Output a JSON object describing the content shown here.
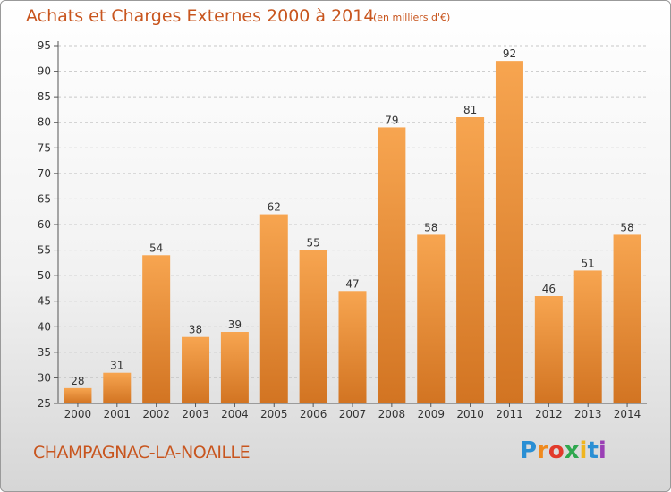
{
  "header": {
    "title": "Achats et Charges Externes 2000 à 2014",
    "unit": "(en milliers d'€)"
  },
  "footer": {
    "commune": "CHAMPAGNAC-LA-NOAILLE",
    "logo": "Proxiti"
  },
  "colors": {
    "bar_light": "#f7a550",
    "bar_dark": "#d27422",
    "title": "#c8551e",
    "grid": "#c8c8c8"
  },
  "chart_data": {
    "type": "bar",
    "categories": [
      "2000",
      "2001",
      "2002",
      "2003",
      "2004",
      "2005",
      "2006",
      "2007",
      "2008",
      "2009",
      "2010",
      "2011",
      "2012",
      "2013",
      "2014"
    ],
    "values": [
      28,
      31,
      54,
      38,
      39,
      62,
      55,
      47,
      79,
      58,
      81,
      92,
      46,
      51,
      58
    ],
    "ylim": [
      25,
      95
    ],
    "yticks": [
      25,
      30,
      35,
      40,
      45,
      50,
      55,
      60,
      65,
      70,
      75,
      80,
      85,
      90,
      95
    ],
    "grid": "horizontal dashed",
    "data_labels": true
  }
}
